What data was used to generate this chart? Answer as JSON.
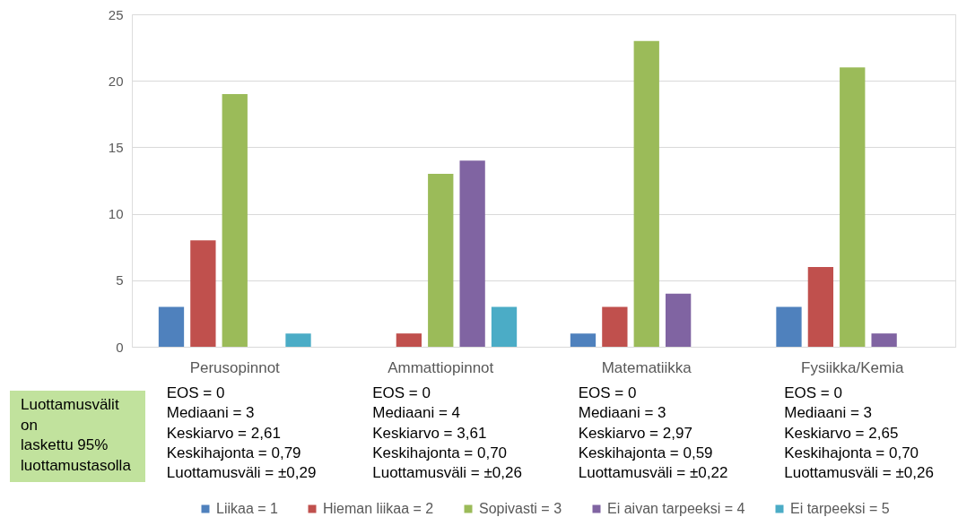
{
  "chart_data": {
    "type": "bar",
    "categories": [
      "Perusopinnot",
      "Ammattiopinnot",
      "Matematiikka",
      "Fysiikka/Kemia"
    ],
    "series": [
      {
        "name": "Liikaa = 1",
        "color": "#4f81bd",
        "values": [
          3,
          0,
          1,
          3
        ]
      },
      {
        "name": "Hieman liikaa = 2",
        "color": "#c0504d",
        "values": [
          8,
          1,
          3,
          6
        ]
      },
      {
        "name": "Sopivasti = 3",
        "color": "#9bbb59",
        "values": [
          19,
          13,
          23,
          21
        ]
      },
      {
        "name": "Ei aivan tarpeeksi = 4",
        "color": "#8064a2",
        "values": [
          0,
          14,
          4,
          1
        ]
      },
      {
        "name": "Ei tarpeeksi = 5",
        "color": "#4bacc6",
        "values": [
          1,
          3,
          0,
          0
        ]
      }
    ],
    "ylim": [
      0,
      25
    ],
    "yticks": [
      0,
      5,
      10,
      15,
      20,
      25
    ],
    "grid": "y",
    "legend": "bottom",
    "annotations": [
      "Luottamusvälit\non\nlaskettu 95%\nluottamustasolla",
      "EOS = 0\nMediaani = 3\nKeskiarvo = 2,61\nKeskihajonta = 0,79\nLuottamusväli = ±0,29",
      "EOS = 0\nMediaani = 4\nKeskiarvo = 3,61\nKeskihajonta = 0,70\nLuottamusväli = ±0,26",
      "EOS = 0\nMediaani = 3\nKeskiarvo = 2,97\nKeskihajonta = 0,59\nLuottamusväli = ±0,22",
      "EOS = 0\nMediaani = 3\nKeskiarvo = 2,65\nKeskihajonta = 0,70\nLuottamusväli = ±0,26"
    ]
  }
}
